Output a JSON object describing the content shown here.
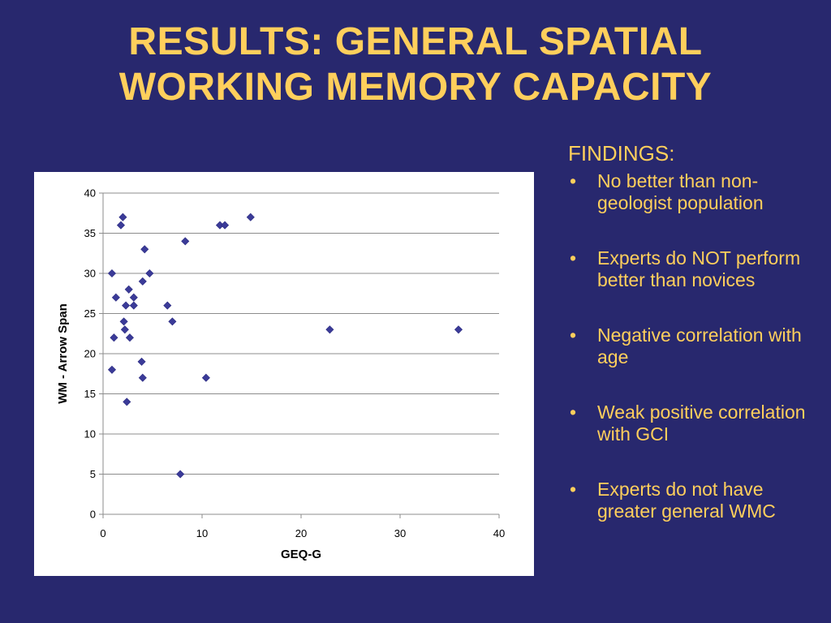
{
  "slide": {
    "title_line1": "RESULTS: GENERAL SPATIAL",
    "title_line2": "WORKING MEMORY CAPACITY",
    "title_color": "#ffcf5c",
    "background_color": "#28286e"
  },
  "findings": {
    "heading": "FINDINGS:",
    "bullet_glyph": "•",
    "items": [
      "No better than non-geologist population",
      "Experts do NOT perform better than novices",
      "Negative correlation with age",
      "Weak positive correlation with GCI",
      "Experts do not have greater general WMC"
    ]
  },
  "chart_data": {
    "type": "scatter",
    "title": "",
    "xlabel": "GEQ-G",
    "ylabel": "WM - Arrow Span",
    "xlim": [
      0,
      40
    ],
    "ylim": [
      0,
      40
    ],
    "xticks": [
      0,
      10,
      20,
      30,
      40
    ],
    "yticks": [
      0,
      5,
      10,
      15,
      20,
      25,
      30,
      35,
      40
    ],
    "grid": "horizontal",
    "legend": "none",
    "marker": "diamond",
    "marker_color": "#3b3b98",
    "points": [
      {
        "x": 0.9,
        "y": 30
      },
      {
        "x": 0.9,
        "y": 18
      },
      {
        "x": 1.1,
        "y": 22
      },
      {
        "x": 1.3,
        "y": 27
      },
      {
        "x": 1.8,
        "y": 36
      },
      {
        "x": 2.0,
        "y": 37
      },
      {
        "x": 2.1,
        "y": 24
      },
      {
        "x": 2.2,
        "y": 23
      },
      {
        "x": 2.3,
        "y": 26
      },
      {
        "x": 2.4,
        "y": 14
      },
      {
        "x": 2.6,
        "y": 28
      },
      {
        "x": 2.7,
        "y": 22
      },
      {
        "x": 3.1,
        "y": 27
      },
      {
        "x": 3.1,
        "y": 26
      },
      {
        "x": 3.9,
        "y": 19
      },
      {
        "x": 4.0,
        "y": 29
      },
      {
        "x": 4.0,
        "y": 17
      },
      {
        "x": 4.2,
        "y": 33
      },
      {
        "x": 4.7,
        "y": 30
      },
      {
        "x": 6.5,
        "y": 26
      },
      {
        "x": 7.0,
        "y": 24
      },
      {
        "x": 7.8,
        "y": 5
      },
      {
        "x": 8.3,
        "y": 34
      },
      {
        "x": 10.4,
        "y": 17
      },
      {
        "x": 11.8,
        "y": 36
      },
      {
        "x": 12.3,
        "y": 36
      },
      {
        "x": 14.9,
        "y": 37
      },
      {
        "x": 22.9,
        "y": 23
      },
      {
        "x": 35.9,
        "y": 23
      }
    ]
  }
}
